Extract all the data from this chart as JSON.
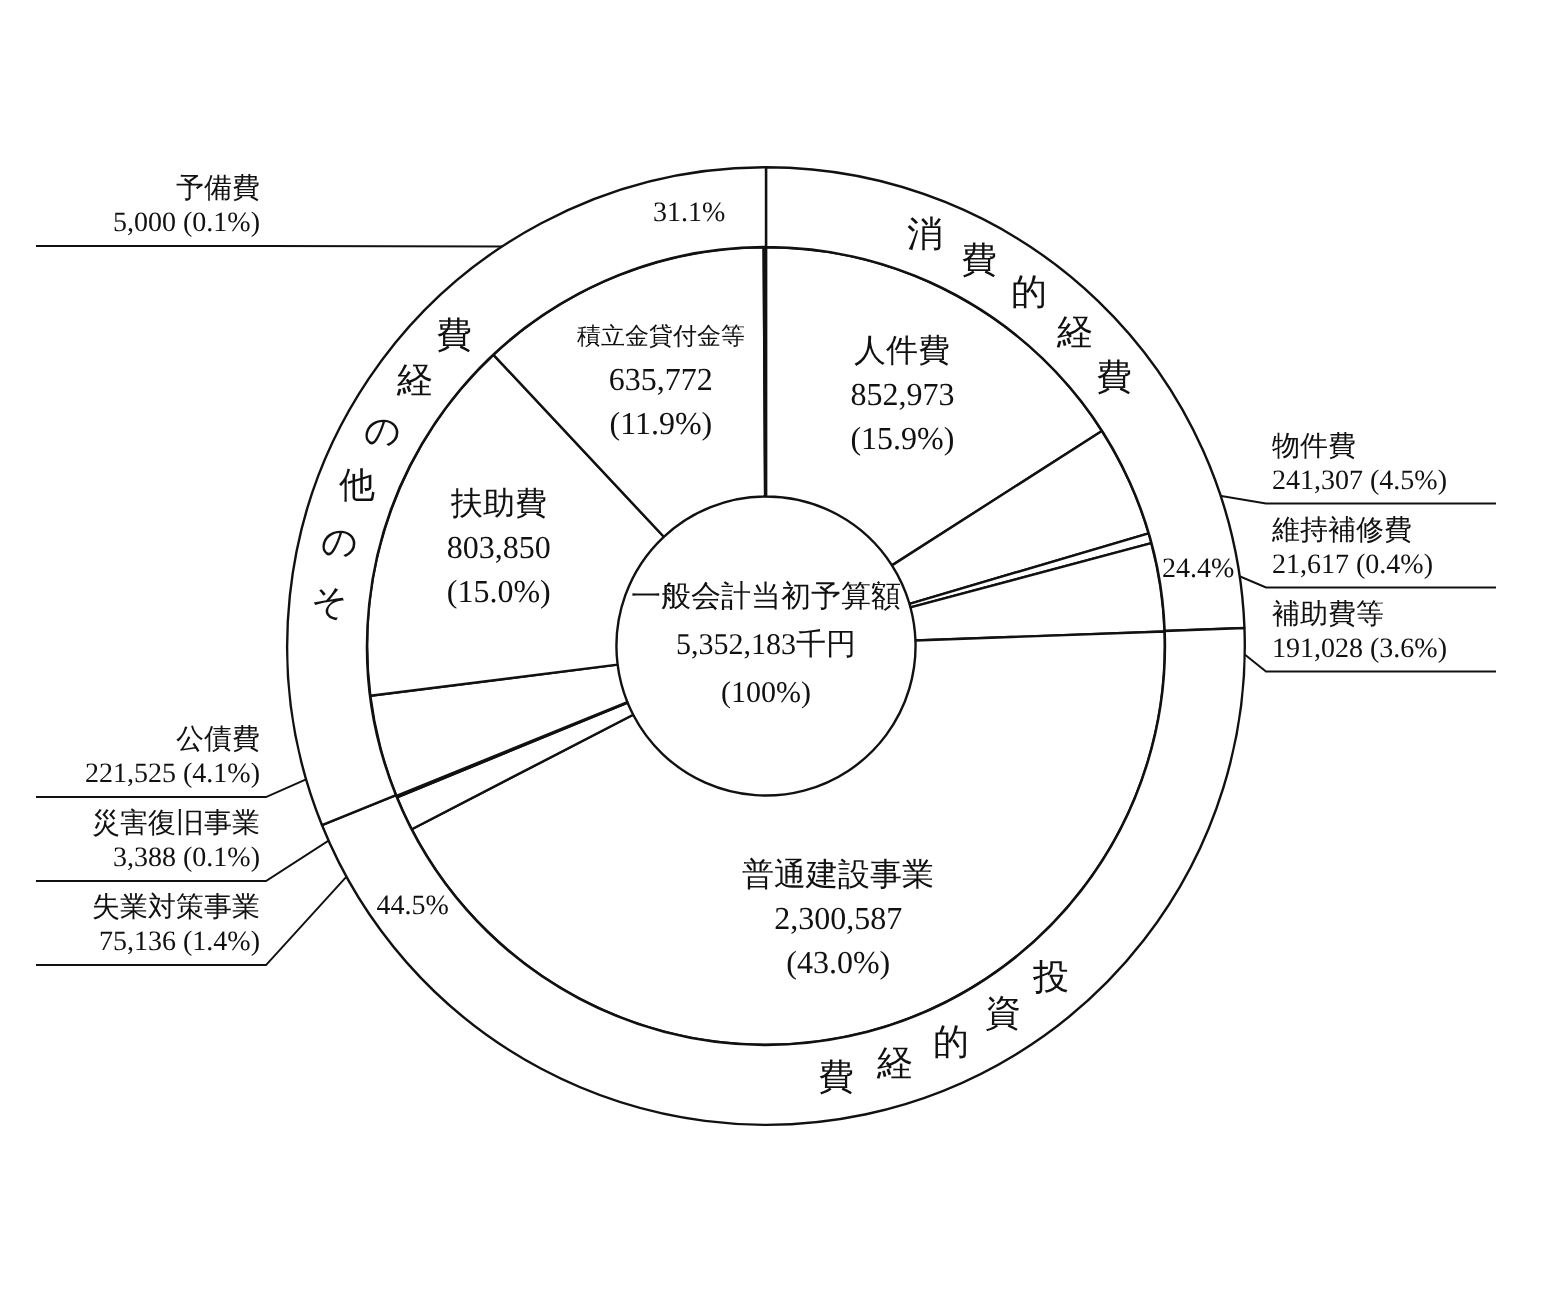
{
  "chart_data": [
    {
      "type": "donut",
      "title": "一般会計当初予算額",
      "annotations": [
        "5,352,183千円",
        "(100%)"
      ],
      "categories": [
        "人件費",
        "物件費",
        "維持補修費",
        "補助費等",
        "普通建設事業",
        "失業対策事業",
        "災害復旧事業",
        "公債費",
        "扶助費",
        "積立金貸付金等",
        "予備費"
      ],
      "values": [
        852973,
        241307,
        21617,
        191028,
        2300587,
        75136,
        3388,
        221525,
        803850,
        635772,
        5000
      ],
      "value_labels": [
        "852,973 (15.9%)",
        "241,307 (4.5%)",
        "21,617 (0.4%)",
        "191,028 (3.6%)",
        "2,300,587 (43.0%)",
        "75,136 (1.4%)",
        "3,388 (0.1%)",
        "221,525 (4.1%)",
        "803,850 (15.0%)",
        "635,772 (11.9%)",
        "5,000 (0.1%)"
      ],
      "colors": [
        "#ffffff",
        "#ffffff",
        "#ffffff",
        "#ffffff",
        "#ffffff",
        "#ffffff",
        "#ffffff",
        "#ffffff",
        "#ffffff",
        "#ffffff",
        "#ffffff"
      ]
    },
    {
      "type": "donut",
      "categories": [
        "消費的経費",
        "投資的経費",
        "その他の経費"
      ],
      "values": [
        24.4,
        44.5,
        31.1
      ],
      "value_labels": [
        "24.4%",
        "44.5%",
        "31.1%"
      ],
      "colors": [
        "#ffffff",
        "#ffffff",
        "#ffffff"
      ]
    }
  ]
}
